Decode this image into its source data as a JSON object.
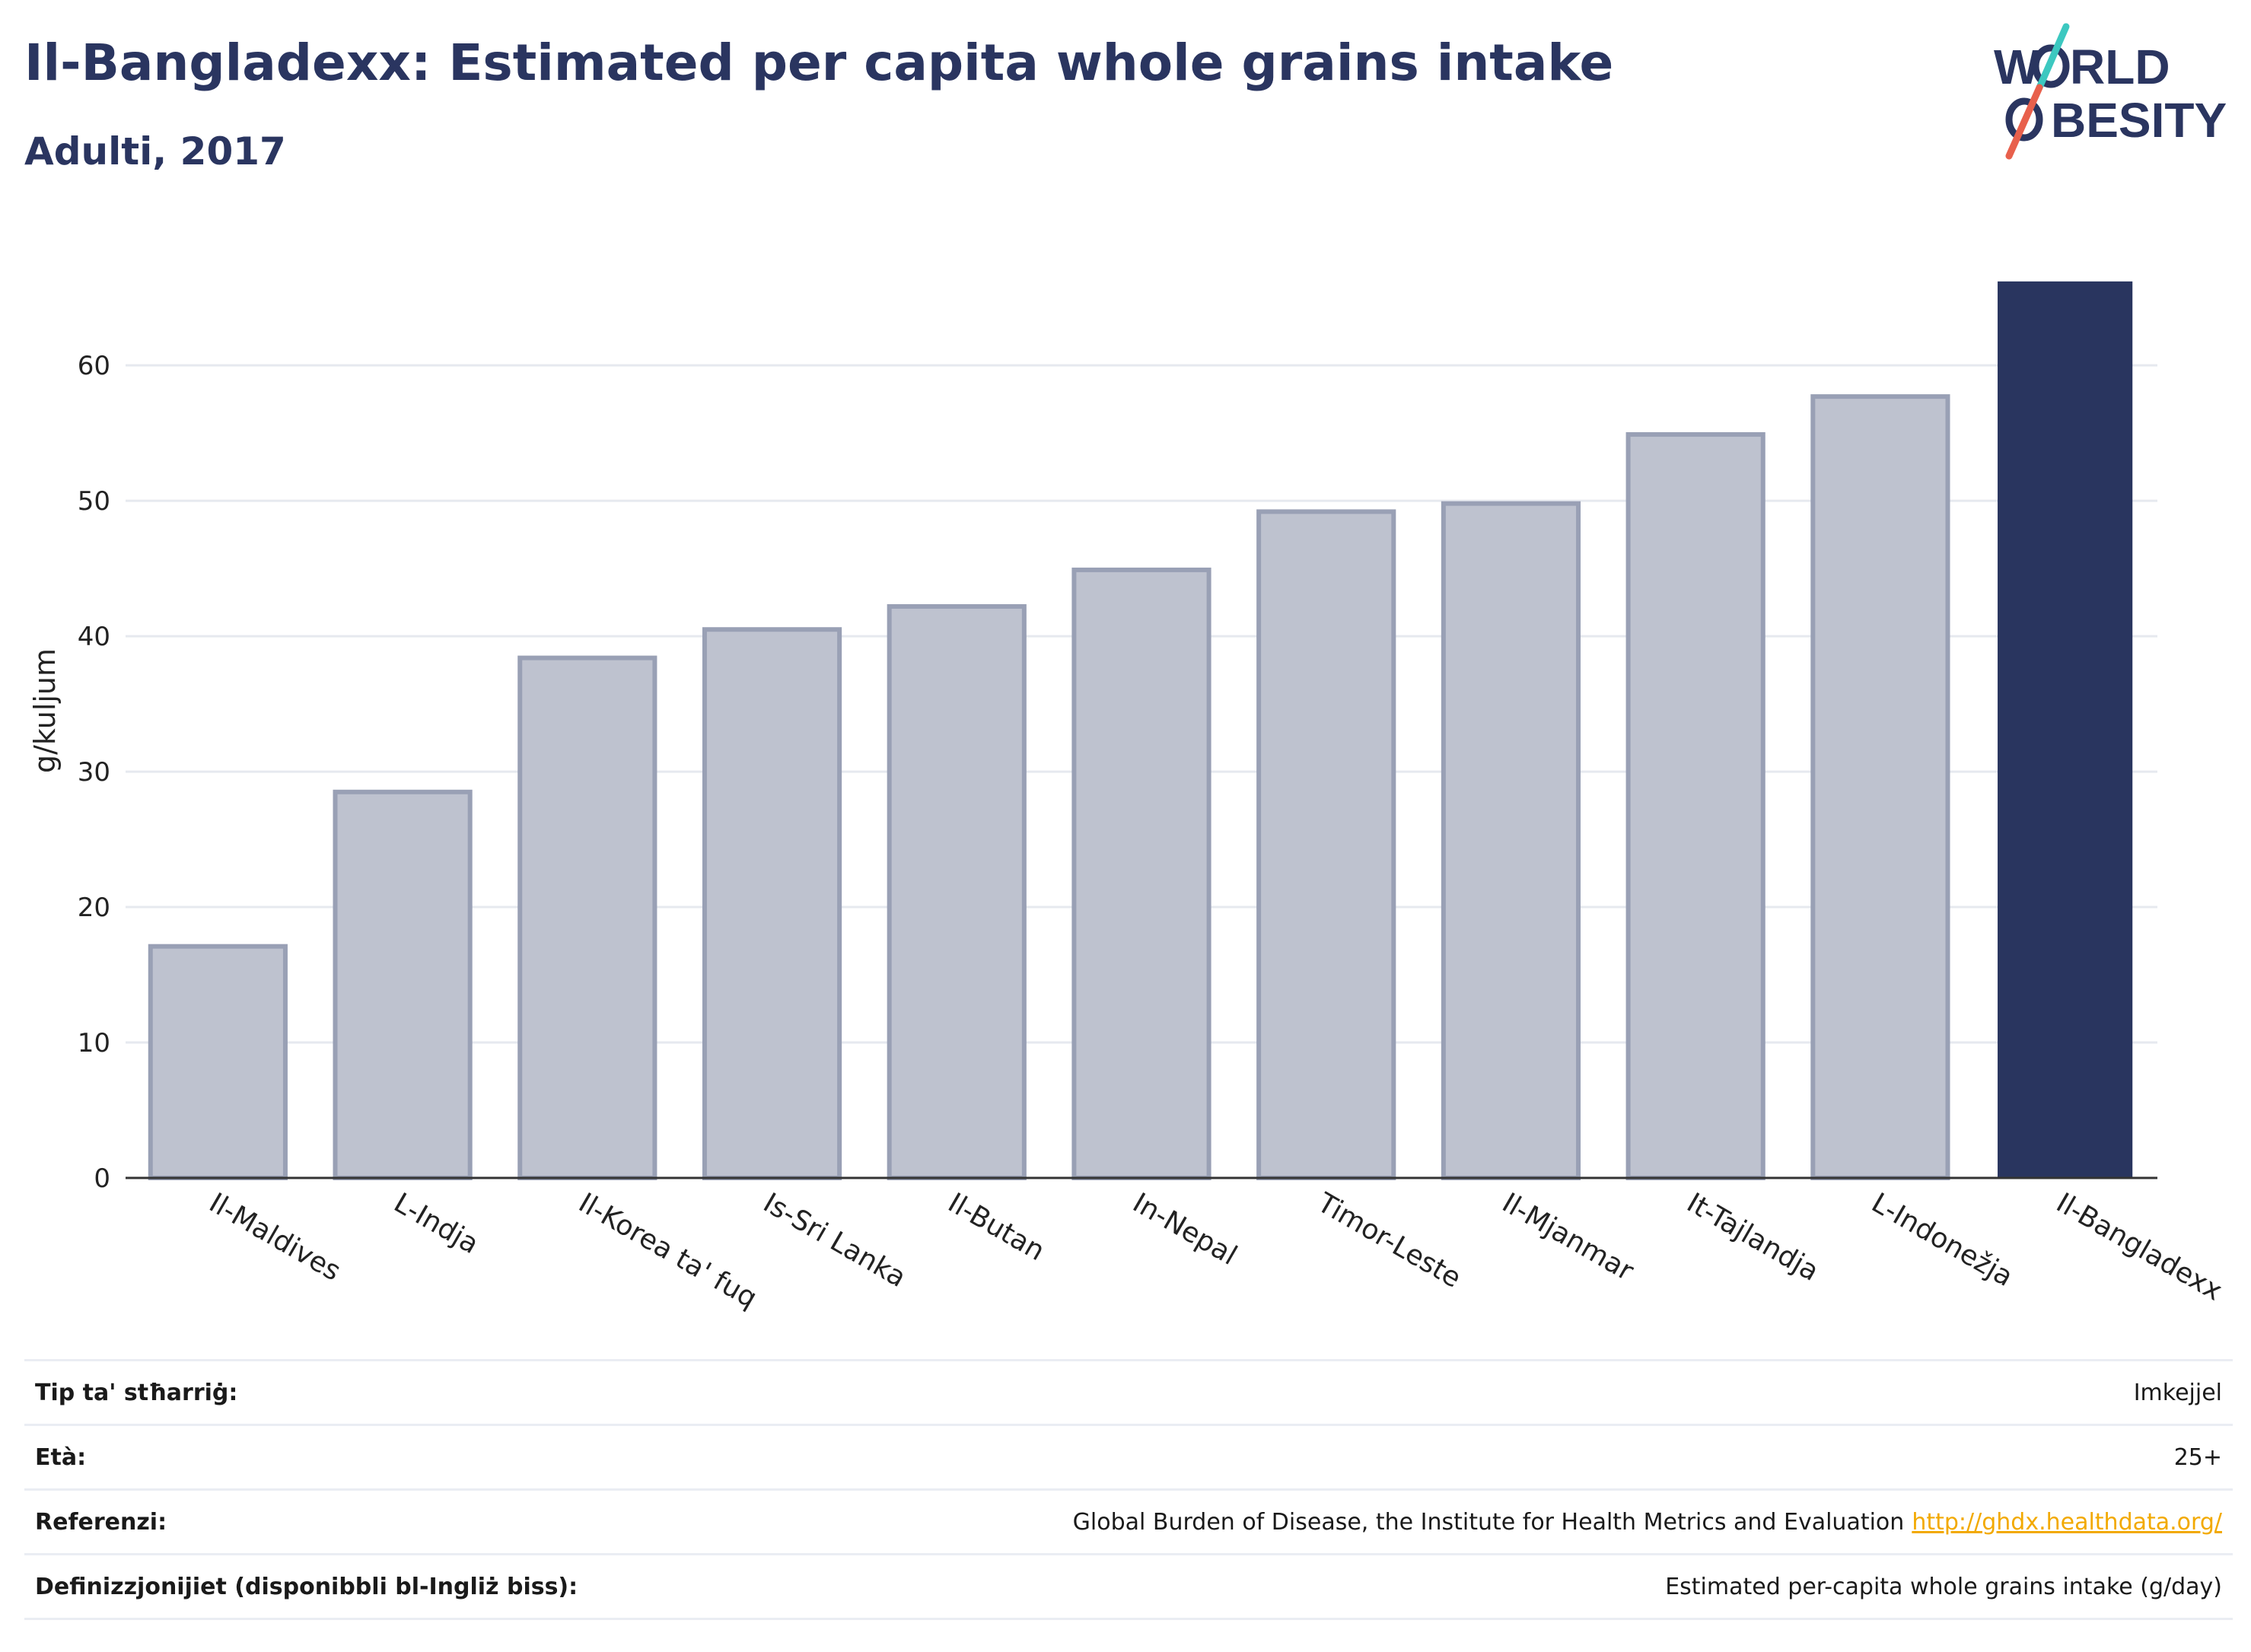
{
  "header": {
    "title": "Il-Bangladexx: Estimated per capita whole grains intake",
    "subtitle": "Adulti, 2017"
  },
  "logo": {
    "line1": "W RLD",
    "line2": "BESITY",
    "stroke_colors": [
      "#3cc8c0",
      "#e8604c"
    ],
    "text_color": "#2a3560"
  },
  "chart_data": {
    "type": "bar",
    "categories": [
      "Il-Maldives",
      "L-Indja",
      "Il-Korea ta' fuq",
      "Is-Sri Lanka",
      "Il-Butan",
      "In-Nepal",
      "Timor-Leste",
      "Il-Mjanmar",
      "It-Tajlandja",
      "L-Indonežja",
      "Il-Bangladexx"
    ],
    "values": [
      17.1,
      28.5,
      38.4,
      40.5,
      42.2,
      44.9,
      49.2,
      49.8,
      54.9,
      57.7,
      66.2
    ],
    "highlight_index": 10,
    "ylabel": "g/kuljum",
    "xlabel": "",
    "yticks": [
      0,
      10,
      20,
      30,
      40,
      50,
      60
    ],
    "ylim": [
      0,
      69
    ],
    "grid": true,
    "colors": {
      "highlight": "#29355f",
      "other_fill": "#bec2cf",
      "other_stroke": "#99a0b5",
      "grid": "#e6e9ef",
      "axis": "#333333"
    }
  },
  "info": {
    "rows": [
      {
        "label": "Tip ta' stħarriġ:",
        "value": "Imkejjel",
        "link": ""
      },
      {
        "label": "Età:",
        "value": "25+",
        "link": ""
      },
      {
        "label": "Referenzi:",
        "value": "Global Burden of Disease, the Institute for Health Metrics and Evaluation",
        "link": "http://ghdx.healthdata.org/"
      },
      {
        "label": "Definizzjonijiet (disponibbli bl-Ingliż biss):",
        "value": "Estimated per-capita whole grains intake (g/day)",
        "link": ""
      }
    ]
  }
}
